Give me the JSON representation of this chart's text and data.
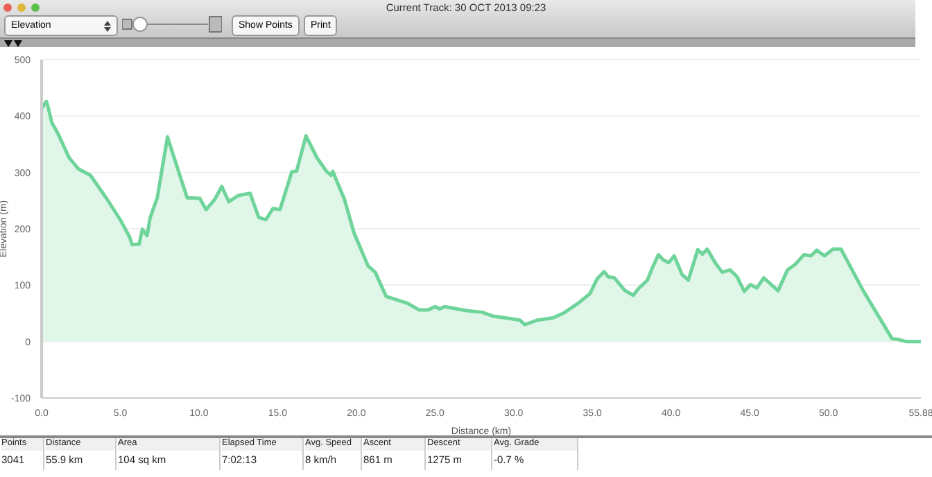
{
  "chart_data": {
    "type": "area",
    "title": "Current Track: 30 OCT 2013 09:23",
    "xlabel": "Distance  (km)",
    "ylabel": "Elevation (m)",
    "annotations": [
      "Elevation",
      "Show Points",
      "Print",
      "Points",
      "Distance",
      "Area",
      "Elapsed Time",
      "Avg. Speed",
      "Ascent",
      "Descent",
      "Avg. Grade",
      "3041",
      "55.9 km",
      "104 sq km",
      "7:02:13",
      "8 km/h",
      "861 m",
      "1275 m",
      "-0.7 %"
    ],
    "x": [
      0,
      0.3,
      0.45,
      0.65,
      1.0,
      1.75,
      2.35,
      3.1,
      4.1,
      5.0,
      5.6,
      5.75,
      6.2,
      6.4,
      6.7,
      6.9,
      7.35,
      8.0,
      8.7,
      9.25,
      10.05,
      10.45,
      11.0,
      11.45,
      11.9,
      12.5,
      13.25,
      13.8,
      14.25,
      14.7,
      15.15,
      15.9,
      16.2,
      16.8,
      17.5,
      18.1,
      18.4,
      18.5,
      19.25,
      19.85,
      20.75,
      21.2,
      21.9,
      23.25,
      24.0,
      24.55,
      25.0,
      25.3,
      25.6,
      27.0,
      28.0,
      28.7,
      29.7,
      30.4,
      30.7,
      31.5,
      32.5,
      33.2,
      34.1,
      34.85,
      35.3,
      35.75,
      36.0,
      36.4,
      37.05,
      37.6,
      37.9,
      38.5,
      38.8,
      39.2,
      39.5,
      39.85,
      40.2,
      40.7,
      41.1,
      41.7,
      42.0,
      42.3,
      42.8,
      43.25,
      43.75,
      44.2,
      44.65,
      45.05,
      45.45,
      45.9,
      46.8,
      47.4,
      47.9,
      48.45,
      48.9,
      49.25,
      49.75,
      50.3,
      50.8,
      51.45,
      52.2,
      52.95,
      54.05,
      54.4,
      54.95,
      55.88
    ],
    "series": [
      {
        "color": "#6fd49a",
        "values": [
          413,
          426,
          412,
          388,
          371,
          326,
          306,
          295,
          255,
          216,
          185,
          172,
          173,
          199,
          188,
          220,
          255,
          363,
          302,
          255,
          254,
          234,
          252,
          275,
          248,
          259,
          263,
          220,
          216,
          236,
          234,
          301,
          302,
          365,
          326,
          302,
          295,
          302,
          252,
          193,
          134,
          123,
          80,
          68,
          56,
          56,
          62,
          58,
          62,
          55,
          52,
          45,
          41,
          38,
          30,
          38,
          42,
          51,
          68,
          85,
          111,
          124,
          115,
          113,
          91,
          82,
          93,
          109,
          130,
          154,
          145,
          140,
          152,
          119,
          109,
          163,
          155,
          164,
          140,
          123,
          127,
          115,
          89,
          101,
          95,
          113,
          90,
          127,
          137,
          154,
          152,
          162,
          152,
          164,
          164,
          130,
          91,
          56,
          5,
          4,
          0,
          0
        ]
      }
    ],
    "xlim": [
      0,
      55.88
    ],
    "xticks": [
      {
        "value": 0,
        "label": "0.0"
      },
      {
        "value": 5,
        "label": "5.0"
      },
      {
        "value": 10,
        "label": "10.0"
      },
      {
        "value": 15,
        "label": "15.0"
      },
      {
        "value": 20,
        "label": "20.0"
      },
      {
        "value": 25,
        "label": "25.0"
      },
      {
        "value": 30,
        "label": "30.0"
      },
      {
        "value": 35,
        "label": "35.0"
      },
      {
        "value": 40,
        "label": "40.0"
      },
      {
        "value": 45,
        "label": "45.0"
      },
      {
        "value": 50,
        "label": "50.0"
      },
      {
        "value": 55.88,
        "label": "55.88"
      }
    ],
    "ylim": [
      -100,
      500
    ],
    "yticks": [
      -100,
      0,
      100,
      200,
      300,
      400,
      500
    ],
    "grid": "y",
    "line_style": "solid"
  }
}
